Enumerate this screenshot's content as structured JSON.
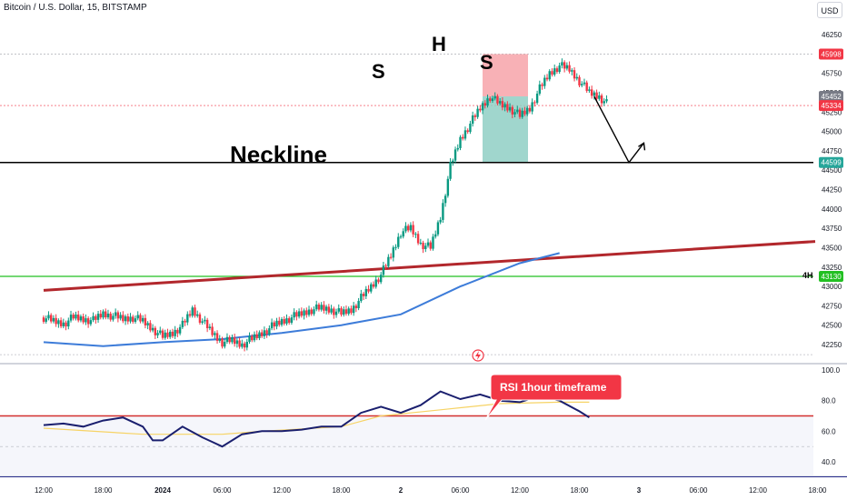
{
  "header": {
    "title": "Bitcoin / U.S. Dollar, 15, BITSTAMP",
    "currency": "USD"
  },
  "annotations": {
    "left_shoulder": "S",
    "head": "H",
    "right_shoulder": "S",
    "neckline": "Neckline",
    "timeframe_tag": "4H",
    "rsi_callout": "RSI 1hour timeframe"
  },
  "colors": {
    "candle_up": "#089981",
    "candle_down": "#f23645",
    "ma_line": "#3d7cd9",
    "trendline": "#b2272c",
    "green_level": "#22c022",
    "neckline": "#000000",
    "rsi_line": "#1a1f6e",
    "rsi_ma": "#f6d365",
    "rsi_level": "#d32f2f",
    "stop_zone": "#f7a3a9",
    "target_zone": "#8fcfc4",
    "callout_bg": "#f23645"
  },
  "chart_data": [
    {
      "type": "candlestick",
      "title": "Bitcoin / U.S. Dollar, 15, BITSTAMP",
      "ylim": [
        42000,
        46500
      ],
      "y_ticks": [
        42250,
        42500,
        42750,
        43000,
        43250,
        43500,
        43750,
        44000,
        44250,
        44500,
        44750,
        45000,
        45250,
        45500,
        45750,
        46000,
        46250
      ],
      "x_tick_labels": [
        "12:00",
        "18:00",
        "2024",
        "06:00",
        "12:00",
        "18:00",
        "2",
        "06:00",
        "12:00",
        "18:00",
        "3",
        "06:00",
        "12:00",
        "18:00"
      ],
      "price_series": {
        "x_hours": [
          0,
          1,
          2,
          3,
          4,
          5,
          6,
          7,
          8,
          9,
          10,
          11,
          12,
          13,
          14,
          15,
          16,
          17,
          18,
          19,
          20,
          21,
          22,
          23,
          24,
          25,
          26,
          27,
          28,
          29,
          30,
          31,
          32,
          33,
          34,
          35,
          36,
          37,
          38,
          39,
          40,
          41,
          42,
          43,
          44,
          45,
          46,
          47,
          48,
          49,
          50,
          51,
          52,
          53,
          54,
          55,
          56,
          57
        ],
        "close": [
          42600,
          42550,
          42520,
          42600,
          42580,
          42560,
          42650,
          42620,
          42580,
          42600,
          42550,
          42450,
          42350,
          42400,
          42500,
          42700,
          42550,
          42400,
          42280,
          42300,
          42250,
          42320,
          42400,
          42480,
          42550,
          42600,
          42650,
          42700,
          42720,
          42700,
          42650,
          42700,
          42850,
          43000,
          43150,
          43400,
          43700,
          43750,
          43550,
          43500,
          43900,
          44550,
          44900,
          45100,
          45300,
          45450,
          45350,
          45300,
          45200,
          45300,
          45550,
          45750,
          45850,
          45800,
          45650,
          45500,
          45450,
          45330
        ]
      },
      "ma_series": {
        "x_hours": [
          0,
          6,
          12,
          18,
          24,
          30,
          36,
          42,
          48,
          52
        ],
        "values": [
          42280,
          42230,
          42280,
          42320,
          42400,
          42500,
          42640,
          43000,
          43300,
          43430
        ]
      },
      "levels": {
        "neckline": 44599,
        "stop": 45998,
        "last": 45452,
        "current": 45334,
        "green_support": 43130
      },
      "price_badges": [
        "45998",
        "45452",
        "45334",
        "44599",
        "43130"
      ],
      "trendline": {
        "start": [
          0,
          42950
        ],
        "end": [
          63,
          43580
        ]
      },
      "projection": {
        "start": [
          55.5,
          45450
        ],
        "mid": [
          59,
          44600
        ],
        "end": [
          60.5,
          44850
        ]
      }
    },
    {
      "type": "line",
      "title": "RSI 1hour timeframe",
      "ylim": [
        30,
        100
      ],
      "y_ticks": [
        40.0,
        60.0,
        80.0,
        100.0
      ],
      "level": 70,
      "rsi": {
        "x_hours": [
          0,
          2,
          4,
          6,
          8,
          10,
          11,
          12,
          14,
          16,
          17,
          18,
          20,
          22,
          24,
          26,
          28,
          30,
          32,
          34,
          36,
          38,
          40,
          42,
          44,
          46,
          48,
          50,
          52,
          54,
          55
        ],
        "values": [
          64,
          65,
          63,
          67,
          69,
          63,
          54,
          54,
          63,
          56,
          53,
          50,
          58,
          60,
          60,
          61,
          63,
          63,
          72,
          76,
          72,
          77,
          86,
          81,
          84,
          80,
          79,
          83,
          80,
          73,
          69
        ]
      },
      "rsi_ma": {
        "x_hours": [
          0,
          10,
          18,
          22,
          30,
          34,
          40,
          46,
          52,
          55
        ],
        "values": [
          62,
          58,
          58,
          60,
          63,
          70,
          74,
          78,
          79,
          79
        ]
      }
    }
  ]
}
